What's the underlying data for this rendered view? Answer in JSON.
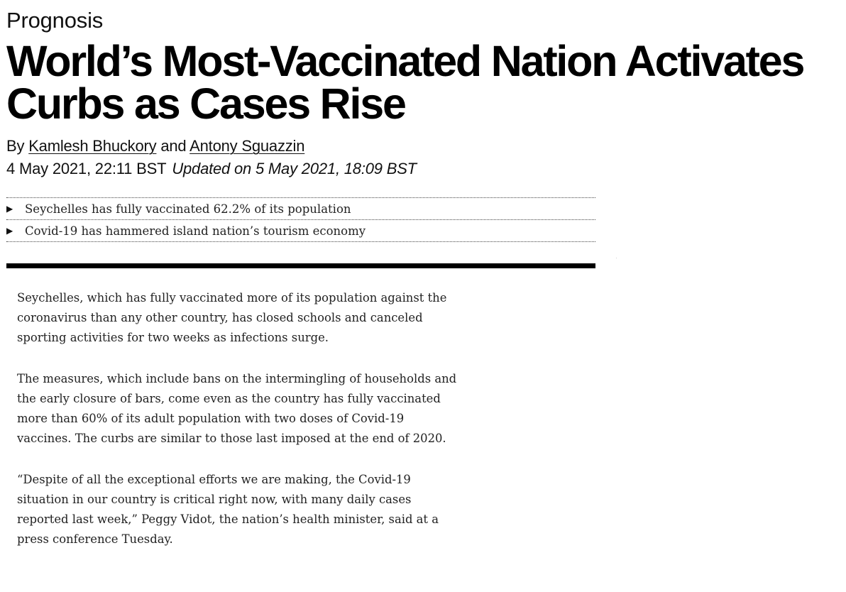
{
  "section": "Prognosis",
  "headline": "World’s Most-Vaccinated Nation Activates Curbs as Cases Rise",
  "byline": {
    "prefix": "By",
    "author1": "Kamlesh Bhuckory",
    "conjunction": "and",
    "author2": "Antony Sguazzin"
  },
  "dateline": {
    "published": "4 May 2021, 22:11 BST",
    "updated": "Updated on 5 May 2021, 18:09 BST"
  },
  "abstract": [
    "Seychelles has fully vaccinated 62.2% of its population",
    "Covid-19 has hammered island nation’s tourism economy"
  ],
  "body": [
    "Seychelles, which has fully vaccinated more of its population against the coronavirus than any other country, has closed schools and canceled sporting activities for two weeks as infections surge.",
    "The measures, which include bans on the intermingling of households and the early closure of bars, come even as the country has fully vaccinated more than 60% of its adult population with two doses of Covid-19 vaccines. The curbs are similar to those last imposed at the end of 2020.",
    "“Despite of all the exceptional efforts we are making, the Covid-19 situation in our country is critical right now, with many daily cases reported last week,” Peggy Vidot, the nation’s health minister, said at a press conference Tuesday."
  ]
}
